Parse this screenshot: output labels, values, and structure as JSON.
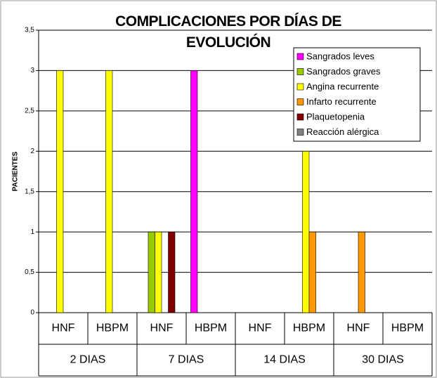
{
  "chart_data": {
    "type": "bar",
    "title": "COMPLICACIONES POR DÍAS DE EVOLUCIÓN",
    "ylabel": "PACIENTES",
    "categories": [
      "HNF",
      "HBPM",
      "HNF",
      "HBPM",
      "HNF",
      "HBPM",
      "HNF",
      "HBPM"
    ],
    "groups": [
      "2 DIAS",
      "7 DIAS",
      "14 DIAS",
      "30 DIAS"
    ],
    "series": [
      {
        "name": "Sangrados leves",
        "color": "#ff00ff",
        "values": [
          0,
          0,
          0,
          3,
          0,
          0,
          0,
          0
        ]
      },
      {
        "name": "Sangrados graves",
        "color": "#99cc00",
        "values": [
          0,
          0,
          1,
          0,
          0,
          0,
          0,
          0
        ]
      },
      {
        "name": "Angina recurrente",
        "color": "#ffff00",
        "values": [
          3,
          3,
          1,
          0,
          0,
          2,
          0,
          0
        ]
      },
      {
        "name": "Infarto recurrente",
        "color": "#ff9900",
        "values": [
          0,
          0,
          0,
          0,
          0,
          1,
          1,
          0
        ]
      },
      {
        "name": "Plaquetopenia",
        "color": "#800000",
        "values": [
          0,
          0,
          1,
          0,
          0,
          0,
          0,
          0
        ]
      },
      {
        "name": "Reacción alérgica",
        "color": "#808080",
        "values": [
          0,
          0,
          0,
          0,
          0,
          0,
          0,
          0
        ]
      }
    ],
    "ylim": [
      0,
      3.5
    ],
    "yticks": [
      0,
      {
        "value": 0.5,
        "label": "0,5"
      },
      1,
      {
        "value": 1.5,
        "label": "1,5"
      },
      2,
      {
        "value": 2.5,
        "label": "2,5"
      },
      3,
      {
        "value": 3.5,
        "label": "3,5"
      }
    ],
    "grid": true,
    "legend": "upper right"
  }
}
